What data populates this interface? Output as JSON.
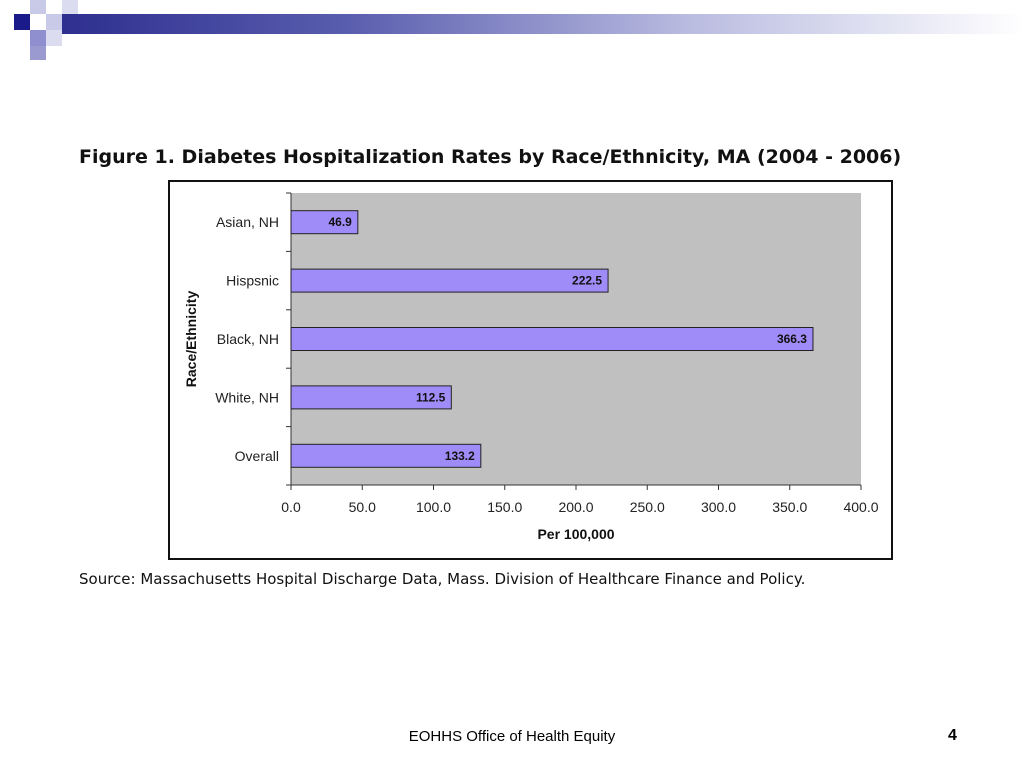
{
  "slide": {
    "figure_title": "Figure 1. Diabetes Hospitalization Rates by Race/Ethnicity, MA (2004 - 2006)",
    "source": "Source: Massachusetts Hospital Discharge Data, Mass. Division of Healthcare Finance and Policy.",
    "footer": "EOHHS Office of Health Equity",
    "page_number": "4"
  },
  "colors": {
    "bar_fill": "#a08cf8",
    "plot_bg": "#c0c0c0",
    "header_dark": "#2e2f8f",
    "header_light": "#9a9ad0"
  },
  "chart_data": {
    "type": "bar",
    "orientation": "horizontal",
    "categories": [
      "Asian, NH",
      "Hispsnic",
      "Black, NH",
      "White, NH",
      "Overall"
    ],
    "values": [
      46.9,
      222.5,
      366.3,
      112.5,
      133.2
    ],
    "value_labels": [
      "46.9",
      "222.5",
      "366.3",
      "112.5",
      "133.2"
    ],
    "xlabel": "Per 100,000",
    "ylabel": "Race/Ethnicity",
    "xlim": [
      0,
      400
    ],
    "xticks": [
      "0.0",
      "50.0",
      "100.0",
      "150.0",
      "200.0",
      "250.0",
      "300.0",
      "350.0",
      "400.0"
    ],
    "grid": false,
    "legend": "none"
  }
}
